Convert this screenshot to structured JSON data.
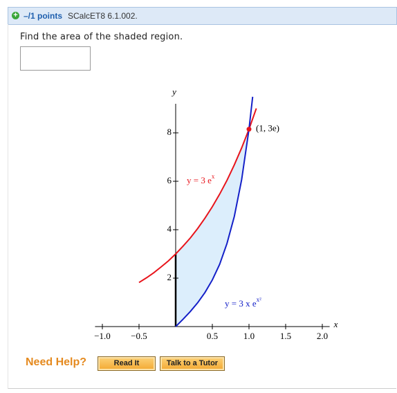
{
  "header": {
    "points": "–/1 points",
    "problem_id": "SCalcET8 6.1.002."
  },
  "question": "Find the area of the shaded region.",
  "chart_data": {
    "type": "line",
    "x_label": "x",
    "y_label": "y",
    "xlim": [
      -1.1,
      2.1
    ],
    "ylim": [
      0,
      9.2
    ],
    "xticks": [
      {
        "value": -1,
        "label": "−1.0"
      },
      {
        "value": -0.5,
        "label": "−0.5"
      },
      {
        "value": 0.5,
        "label": "0.5"
      },
      {
        "value": 1,
        "label": "1.0"
      },
      {
        "value": 1.5,
        "label": "1.5"
      },
      {
        "value": 2,
        "label": "2.0"
      }
    ],
    "yticks": [
      2,
      4,
      6,
      8
    ],
    "series": [
      {
        "color": "#e8141b",
        "x": [
          -0.5,
          -0.4,
          -0.3,
          -0.2,
          -0.1,
          0,
          0.1,
          0.2,
          0.3,
          0.4,
          0.5,
          0.6,
          0.7,
          0.8,
          0.9,
          1,
          1.1
        ],
        "values": [
          1.82,
          2.01,
          2.22,
          2.46,
          2.71,
          3,
          3.32,
          3.66,
          4.05,
          4.48,
          4.95,
          5.47,
          6.04,
          6.68,
          7.38,
          8.15,
          9.01
        ]
      },
      {
        "color": "#1420c8",
        "x": [
          0,
          0.1,
          0.2,
          0.3,
          0.4,
          0.5,
          0.6,
          0.7,
          0.8,
          0.9,
          1,
          1.05
        ],
        "values": [
          0,
          0.303,
          0.624,
          0.984,
          1.41,
          1.926,
          2.573,
          3.434,
          4.55,
          6.07,
          8.15,
          9.49
        ]
      }
    ],
    "fill_color": "#dceefc",
    "annotations": [
      {
        "text": "y = 3 e",
        "sup": "x"
      },
      {
        "text": "y = 3 x e",
        "sup": "x²"
      }
    ],
    "point": {
      "x": 1,
      "y": 8.15,
      "label": "(1, 3e)"
    }
  },
  "help": {
    "label": "Need Help?",
    "buttons": [
      "Read It",
      "Talk to a Tutor"
    ]
  }
}
